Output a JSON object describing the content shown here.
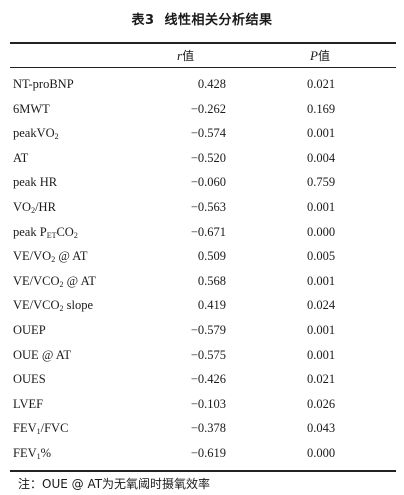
{
  "caption": {
    "number": "表3",
    "title": "线性相关分析结果"
  },
  "headers": {
    "r_symbol": "r",
    "p_symbol": "P",
    "value_suffix": "值"
  },
  "rows": [
    {
      "var": "NT-proBNP",
      "r": "0.428",
      "p": "0.021"
    },
    {
      "var": "6MWT",
      "r": "−0.262",
      "p": "0.169"
    },
    {
      "var": "peakVO",
      "sub": "2",
      "after": "",
      "r": "−0.574",
      "p": "0.001"
    },
    {
      "var": "AT",
      "r": "−0.520",
      "p": "0.004"
    },
    {
      "var": "peak HR",
      "r": "−0.060",
      "p": "0.759"
    },
    {
      "var": "VO",
      "sub": "2",
      "after": "/HR",
      "r": "−0.563",
      "p": "0.001"
    },
    {
      "var": "peak P",
      "sub": "ET",
      "after": "CO",
      "sub2": "2",
      "r": "−0.671",
      "p": "0.000"
    },
    {
      "var": "VE/VO",
      "sub": "2",
      "after": " @ AT",
      "r": "0.509",
      "p": "0.005"
    },
    {
      "var": "VE/VCO",
      "sub": "2",
      "after": " @ AT",
      "r": "0.568",
      "p": "0.001"
    },
    {
      "var": "VE/VCO",
      "sub": "2",
      "after": " slope",
      "r": "0.419",
      "p": "0.024"
    },
    {
      "var": "OUEP",
      "r": "−0.579",
      "p": "0.001"
    },
    {
      "var": "OUE @ AT",
      "r": "−0.575",
      "p": "0.001"
    },
    {
      "var": "OUES",
      "r": "−0.426",
      "p": "0.021"
    },
    {
      "var": "LVEF",
      "r": "−0.103",
      "p": "0.026"
    },
    {
      "var": "FEV",
      "sub": "1",
      "after": "/FVC",
      "r": "−0.378",
      "p": "0.043"
    },
    {
      "var": "FEV",
      "sub": "1",
      "after": "%",
      "r": "−0.619",
      "p": "0.000"
    }
  ],
  "note": "注：OUE @ AT为无氧阈时摄氧效率"
}
